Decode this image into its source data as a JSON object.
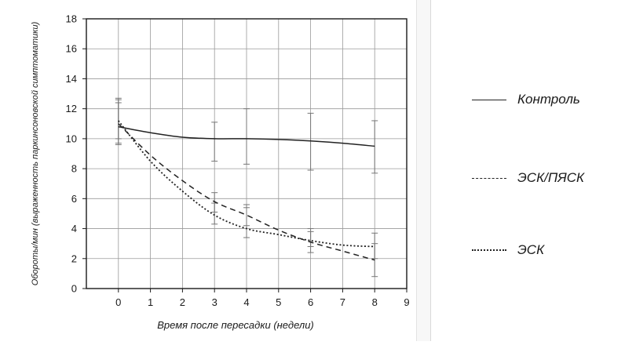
{
  "chart_data": {
    "type": "line",
    "xlabel": "Время после пересадки (недели)",
    "ylabel": "Обороты/мин (выраженность паркинсоновской симптоматики)",
    "xlim": [
      -1,
      9
    ],
    "ylim": [
      0,
      18
    ],
    "x_ticks": [
      0,
      1,
      2,
      3,
      4,
      5,
      6,
      7,
      8,
      9
    ],
    "y_ticks": [
      0,
      2,
      4,
      6,
      8,
      10,
      12,
      14,
      16,
      18
    ],
    "grid": true,
    "legend_position": "right",
    "series": [
      {
        "name": "Контроль",
        "style": "solid",
        "x": [
          0,
          1,
          2,
          3,
          4,
          5,
          6,
          7,
          8
        ],
        "y": [
          10.8,
          10.4,
          10.1,
          10.0,
          10.0,
          9.95,
          9.85,
          9.7,
          9.5
        ],
        "error_x": [
          0,
          3,
          4,
          6,
          8
        ],
        "error_low": [
          9.6,
          8.5,
          8.3,
          7.9,
          7.7
        ],
        "error_high": [
          12.7,
          11.1,
          12.0,
          11.7,
          11.2
        ]
      },
      {
        "name": "ЭСК/ПЯСК",
        "style": "dashed",
        "x": [
          0,
          1,
          2,
          3,
          4,
          5,
          6,
          7,
          8
        ],
        "y": [
          11.0,
          8.9,
          7.2,
          5.8,
          4.9,
          3.9,
          3.1,
          2.5,
          1.9
        ],
        "error_x": [
          0,
          3,
          4,
          6,
          8
        ],
        "error_low": [
          9.7,
          5.1,
          4.2,
          2.4,
          0.8
        ],
        "error_high": [
          12.4,
          6.4,
          5.6,
          3.8,
          3.0
        ]
      },
      {
        "name": "ЭСК",
        "style": "dotted",
        "x": [
          0,
          1,
          2,
          3,
          4,
          5,
          6,
          7,
          8
        ],
        "y": [
          11.2,
          8.5,
          6.5,
          4.9,
          4.0,
          3.6,
          3.2,
          2.9,
          2.8
        ],
        "error_x": [
          0,
          3,
          4,
          6,
          8
        ],
        "error_low": [
          10.0,
          4.3,
          3.4,
          2.8,
          2.0
        ],
        "error_high": [
          12.6,
          5.7,
          5.4,
          4.0,
          3.7
        ]
      }
    ]
  },
  "colors": {
    "line": "#222222",
    "axis": "#1a1a1a",
    "grid": "#9a9a9a",
    "errorbar": "#777777"
  }
}
